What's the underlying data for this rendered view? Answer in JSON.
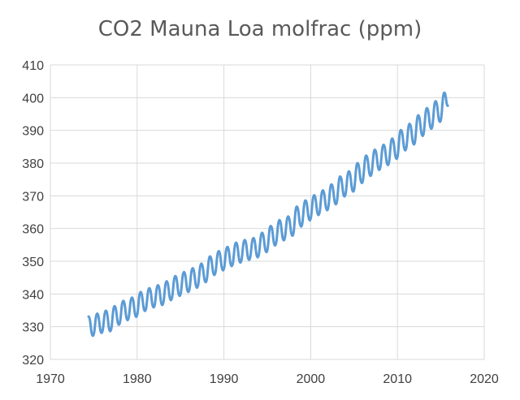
{
  "chart_data": {
    "type": "line",
    "title": "CO2 Mauna Loa molfrac (ppm)",
    "xlabel": "",
    "ylabel": "",
    "xlim": [
      1970,
      2020
    ],
    "ylim": [
      320,
      410
    ],
    "x_ticks": [
      1970,
      1980,
      1990,
      2000,
      2010,
      2020
    ],
    "y_ticks": [
      320,
      330,
      340,
      350,
      360,
      370,
      380,
      390,
      400,
      410
    ],
    "grid": true,
    "legend": "none",
    "series_color": "#5b9bd5",
    "grid_color": "#d9d9d9",
    "series": [
      {
        "name": "CO2 Mauna Loa molfrac (ppm)",
        "x_start": 1974.4,
        "x_end": 2015.8,
        "step": 0.0833,
        "description": "monthly mean values, seasonal cycle approx ±3.3 ppm around trend",
        "points": [
          [
            1974.4,
            333.1
          ],
          [
            1974.9,
            327.2
          ],
          [
            1975.4,
            334.0
          ],
          [
            1975.9,
            328.1
          ],
          [
            1976.4,
            334.9
          ],
          [
            1976.9,
            328.6
          ],
          [
            1977.4,
            336.3
          ],
          [
            1977.9,
            330.6
          ],
          [
            1978.4,
            337.9
          ],
          [
            1978.9,
            332.0
          ],
          [
            1979.4,
            338.9
          ],
          [
            1979.9,
            333.0
          ],
          [
            1980.4,
            340.6
          ],
          [
            1980.9,
            334.8
          ],
          [
            1981.4,
            341.8
          ],
          [
            1981.9,
            335.9
          ],
          [
            1982.4,
            342.7
          ],
          [
            1982.9,
            336.6
          ],
          [
            1983.4,
            343.9
          ],
          [
            1983.9,
            338.1
          ],
          [
            1984.4,
            345.5
          ],
          [
            1984.9,
            339.4
          ],
          [
            1985.4,
            346.7
          ],
          [
            1985.9,
            340.6
          ],
          [
            1986.4,
            347.9
          ],
          [
            1986.9,
            341.9
          ],
          [
            1987.4,
            349.3
          ],
          [
            1987.9,
            343.6
          ],
          [
            1988.4,
            351.5
          ],
          [
            1988.9,
            345.8
          ],
          [
            1989.4,
            353.1
          ],
          [
            1989.9,
            347.2
          ],
          [
            1990.4,
            354.4
          ],
          [
            1990.9,
            348.5
          ],
          [
            1991.4,
            355.7
          ],
          [
            1991.9,
            349.6
          ],
          [
            1992.4,
            356.5
          ],
          [
            1992.9,
            350.4
          ],
          [
            1993.4,
            357.1
          ],
          [
            1993.9,
            351.2
          ],
          [
            1994.4,
            358.7
          ],
          [
            1994.9,
            352.8
          ],
          [
            1995.4,
            360.8
          ],
          [
            1995.9,
            354.8
          ],
          [
            1996.4,
            362.6
          ],
          [
            1996.9,
            356.4
          ],
          [
            1997.4,
            363.7
          ],
          [
            1997.9,
            357.8
          ],
          [
            1998.4,
            366.7
          ],
          [
            1998.9,
            360.6
          ],
          [
            1999.4,
            368.6
          ],
          [
            1999.9,
            362.5
          ],
          [
            2000.4,
            370.2
          ],
          [
            2000.9,
            364.1
          ],
          [
            2001.4,
            371.7
          ],
          [
            2001.9,
            365.6
          ],
          [
            2002.4,
            373.5
          ],
          [
            2002.9,
            367.4
          ],
          [
            2003.4,
            375.9
          ],
          [
            2003.9,
            369.8
          ],
          [
            2004.4,
            377.5
          ],
          [
            2004.9,
            371.3
          ],
          [
            2005.4,
            380.0
          ],
          [
            2005.9,
            373.9
          ],
          [
            2006.4,
            382.3
          ],
          [
            2006.9,
            376.1
          ],
          [
            2007.4,
            384.1
          ],
          [
            2007.9,
            377.9
          ],
          [
            2008.4,
            385.6
          ],
          [
            2008.9,
            379.4
          ],
          [
            2009.4,
            387.5
          ],
          [
            2009.9,
            381.3
          ],
          [
            2010.4,
            390.1
          ],
          [
            2010.9,
            383.9
          ],
          [
            2011.4,
            392.0
          ],
          [
            2011.9,
            385.7
          ],
          [
            2012.4,
            394.6
          ],
          [
            2012.9,
            388.3
          ],
          [
            2013.4,
            396.8
          ],
          [
            2013.9,
            390.5
          ],
          [
            2014.4,
            398.9
          ],
          [
            2014.9,
            392.6
          ],
          [
            2015.4,
            401.5
          ],
          [
            2015.8,
            397.5
          ]
        ]
      }
    ]
  }
}
